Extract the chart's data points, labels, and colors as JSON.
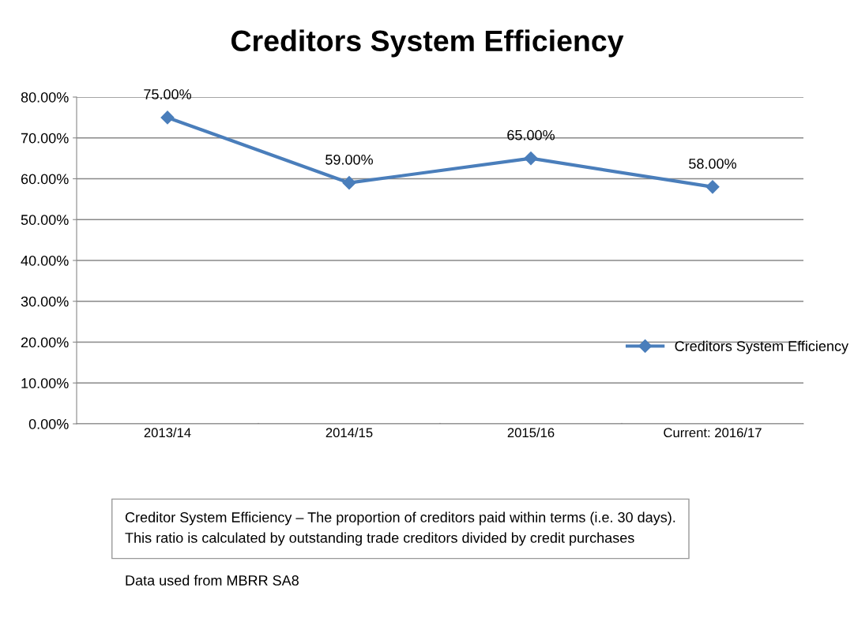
{
  "chart_data": {
    "type": "line",
    "title": "Creditors System Efficiency",
    "categories": [
      "2013/14",
      "2014/15",
      "2015/16",
      "Current: 2016/17"
    ],
    "series": [
      {
        "name": "Creditors System Efficiency",
        "color": "#4a7ebb",
        "values": [
          75,
          59,
          65,
          58
        ],
        "value_labels": [
          "75.00%",
          "59.00%",
          "65.00%",
          "58.00%"
        ]
      }
    ],
    "ylim": [
      0,
      80
    ],
    "yticks": [
      {
        "value": 0,
        "label": "0.00%"
      },
      {
        "value": 10,
        "label": "10.00%"
      },
      {
        "value": 20,
        "label": "20.00%"
      },
      {
        "value": 30,
        "label": "30.00%"
      },
      {
        "value": 40,
        "label": "40.00%"
      },
      {
        "value": 50,
        "label": "50.00%"
      },
      {
        "value": 60,
        "label": "60.00%"
      },
      {
        "value": 70,
        "label": "70.00%"
      },
      {
        "value": 80,
        "label": "80.00%"
      }
    ],
    "grid": "y",
    "legend": "right",
    "marker": "diamond",
    "line_style": "solid",
    "annotations": [
      "Creditor System Efficiency – The proportion of creditors paid within terms (i.e. 30 days).\nThis ratio is calculated by outstanding trade creditors divided by credit purchases",
      "Data used from MBRR SA8"
    ]
  }
}
